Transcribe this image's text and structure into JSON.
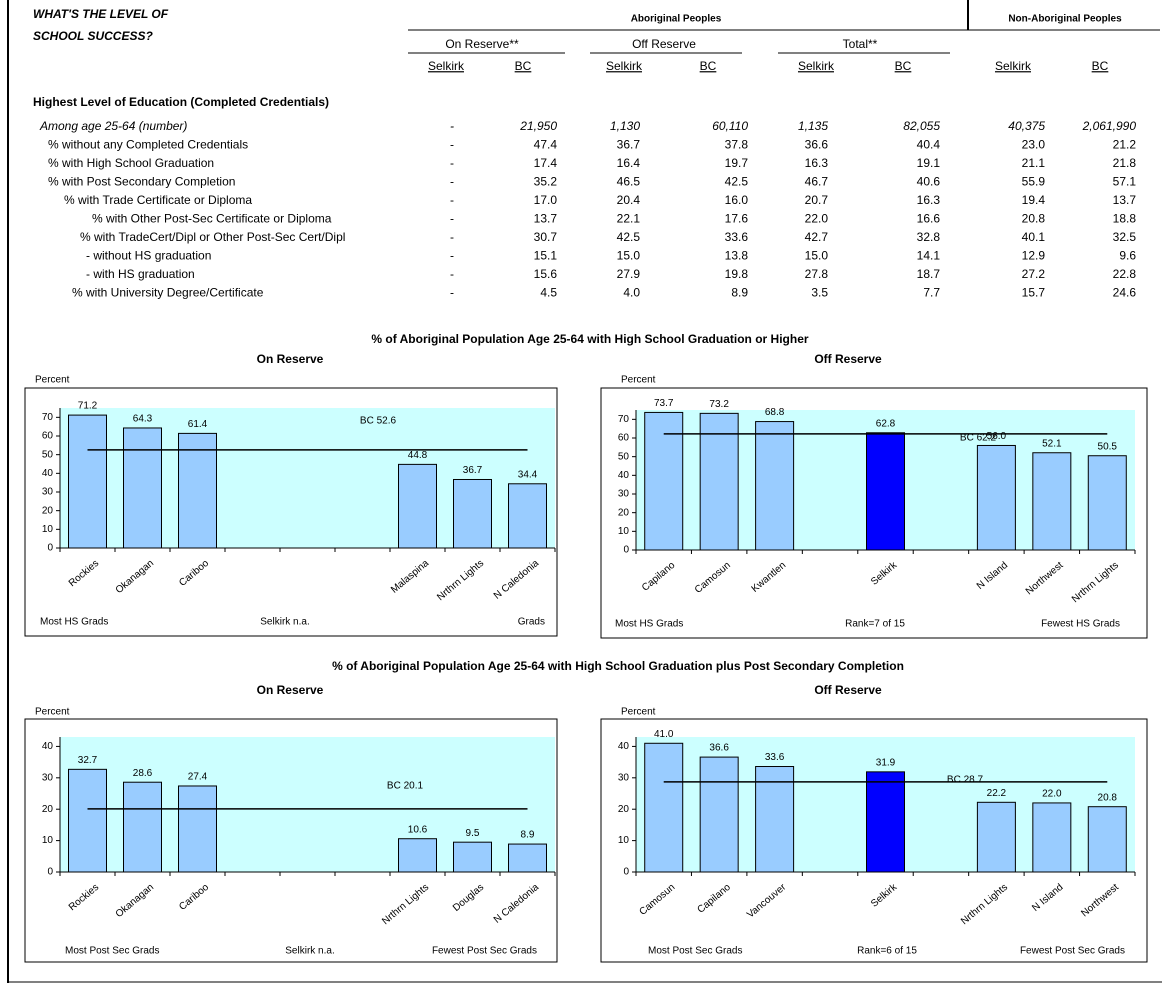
{
  "header": {
    "title": [
      "WHAT'S THE LEVEL OF",
      "SCHOOL SUCCESS?"
    ]
  },
  "table": {
    "groups": [
      "Aboriginal Peoples",
      "Non-Aboriginal Peoples"
    ],
    "subgroups": [
      "On Reserve**",
      "Off Reserve",
      "Total**"
    ],
    "columns": [
      "Selkirk",
      "BC",
      "Selkirk",
      "BC",
      "Selkirk",
      "BC",
      "Selkirk",
      "BC"
    ],
    "section": "Highest Level of Education (Completed Credentials)",
    "rows": [
      {
        "label": "Among age 25-64 (number)",
        "cells": [
          "-",
          "21,950",
          "1,130",
          "60,110",
          "1,135",
          "82,055",
          "40,375",
          "2,061,990"
        ]
      },
      {
        "label": "% without any Completed Credentials",
        "cells": [
          "-",
          "47.4",
          "36.7",
          "37.8",
          "36.6",
          "40.4",
          "23.0",
          "21.2"
        ]
      },
      {
        "label": "% with High School Graduation",
        "cells": [
          "-",
          "17.4",
          "16.4",
          "19.7",
          "16.3",
          "19.1",
          "21.1",
          "21.8"
        ]
      },
      {
        "label": "% with Post Secondary Completion",
        "cells": [
          "-",
          "35.2",
          "46.5",
          "42.5",
          "46.7",
          "40.6",
          "55.9",
          "57.1"
        ]
      },
      {
        "label": "% with Trade Certificate or Diploma",
        "cells": [
          "-",
          "17.0",
          "20.4",
          "16.0",
          "20.7",
          "16.3",
          "19.4",
          "13.7"
        ]
      },
      {
        "label": "% with Other Post-Sec Certificate or Diploma",
        "cells": [
          "-",
          "13.7",
          "22.1",
          "17.6",
          "22.0",
          "16.6",
          "20.8",
          "18.8"
        ]
      },
      {
        "label": "% with TradeCert/Dipl or Other Post-Sec Cert/Dipl",
        "cells": [
          "-",
          "30.7",
          "42.5",
          "33.6",
          "42.7",
          "32.8",
          "40.1",
          "32.5"
        ]
      },
      {
        "label": "- without HS graduation",
        "cells": [
          "-",
          "15.1",
          "15.0",
          "13.8",
          "15.0",
          "14.1",
          "12.9",
          "9.6"
        ]
      },
      {
        "label": "- with HS graduation",
        "cells": [
          "-",
          "15.6",
          "27.9",
          "19.8",
          "27.8",
          "18.7",
          "27.2",
          "22.8"
        ]
      },
      {
        "label": "% with University Degree/Certificate",
        "cells": [
          "-",
          "4.5",
          "4.0",
          "8.9",
          "3.5",
          "7.7",
          "15.7",
          "24.6"
        ]
      }
    ]
  },
  "chart_headings": [
    "% of Aboriginal Population Age 25-64 with High School Graduation or Higher",
    "% of Aboriginal Population Age 25-64 with High School Graduation plus Post Secondary Completion"
  ],
  "chart_data": [
    {
      "type": "bar",
      "title": "On Reserve",
      "y_label": "Percent",
      "categories": [
        "Rockies",
        "Okanagan",
        "Cariboo",
        null,
        null,
        null,
        "Malaspina",
        "Nrthrn Lights",
        "N Caledonia"
      ],
      "values": [
        71.2,
        64.3,
        61.4,
        null,
        null,
        null,
        44.8,
        36.7,
        34.4
      ],
      "colors": [
        "#99ccff",
        "#99ccff",
        "#99ccff",
        null,
        null,
        null,
        "#99ccff",
        "#99ccff",
        "#99ccff"
      ],
      "ylim": [
        0,
        75
      ],
      "yticks": [
        0,
        10,
        20,
        30,
        40,
        50,
        60,
        70
      ],
      "reference": {
        "value": 52.6,
        "label": "BC 52.6"
      },
      "notes": [
        "Most HS Grads",
        "Selkirk n.a.",
        "Grads"
      ]
    },
    {
      "type": "bar",
      "title": "Off Reserve",
      "y_label": "Percent",
      "categories": [
        "Capilano",
        "Camosun",
        "Kwantlen",
        null,
        "Selkirk",
        null,
        "N Island",
        "Northwest",
        "Nrthrn Lights"
      ],
      "values": [
        73.7,
        73.2,
        68.8,
        null,
        62.8,
        null,
        56.0,
        52.1,
        50.5
      ],
      "value_labels": [
        "73.7",
        "73.2",
        "68.8",
        null,
        "62.8",
        null,
        "56.0",
        "52.1",
        "50.5"
      ],
      "colors": [
        "#99ccff",
        "#99ccff",
        "#99ccff",
        null,
        "#0000ff",
        null,
        "#99ccff",
        "#99ccff",
        "#99ccff"
      ],
      "ylim": [
        0,
        75
      ],
      "yticks": [
        0,
        10,
        20,
        30,
        40,
        50,
        60,
        70
      ],
      "reference": {
        "value": 62.2,
        "label": "BC 62.2"
      },
      "notes": [
        "Most HS Grads",
        "Rank=7 of 15",
        "Fewest HS Grads"
      ]
    },
    {
      "type": "bar",
      "title": "On Reserve",
      "y_label": "Percent",
      "categories": [
        "Rockies",
        "Okanagan",
        "Cariboo",
        null,
        null,
        null,
        "Nrthrn Lights",
        "Douglas",
        "N Caledonia"
      ],
      "values": [
        32.7,
        28.6,
        27.4,
        null,
        null,
        null,
        10.6,
        9.5,
        8.9
      ],
      "colors": [
        "#99ccff",
        "#99ccff",
        "#99ccff",
        null,
        null,
        null,
        "#99ccff",
        "#99ccff",
        "#99ccff"
      ],
      "ylim": [
        0,
        43
      ],
      "yticks": [
        0,
        10,
        20,
        30,
        40
      ],
      "reference": {
        "value": 20.1,
        "label": "BC 20.1"
      },
      "notes": [
        "Most Post Sec Grads",
        "Selkirk n.a.",
        "Fewest Post Sec Grads"
      ]
    },
    {
      "type": "bar",
      "title": "Off Reserve",
      "y_label": "Percent",
      "categories": [
        "Camosun",
        "Capilano",
        "Vancouver",
        null,
        "Selkirk",
        null,
        "Nrthrn Lights",
        "N Island",
        "Northwest"
      ],
      "values": [
        41.0,
        36.6,
        33.6,
        null,
        31.9,
        null,
        22.2,
        22.0,
        20.8
      ],
      "value_labels": [
        "41.0",
        "36.6",
        "33.6",
        null,
        "31.9",
        null,
        "22.2",
        "22.0",
        "20.8"
      ],
      "colors": [
        "#99ccff",
        "#99ccff",
        "#99ccff",
        null,
        "#0000ff",
        null,
        "#99ccff",
        "#99ccff",
        "#99ccff"
      ],
      "ylim": [
        0,
        43
      ],
      "yticks": [
        0,
        10,
        20,
        30,
        40
      ],
      "reference": {
        "value": 28.7,
        "label": "BC 28.7"
      },
      "notes": [
        "Most Post Sec Grads",
        "Rank=6 of 15",
        "Fewest Post Sec Grads"
      ]
    }
  ]
}
